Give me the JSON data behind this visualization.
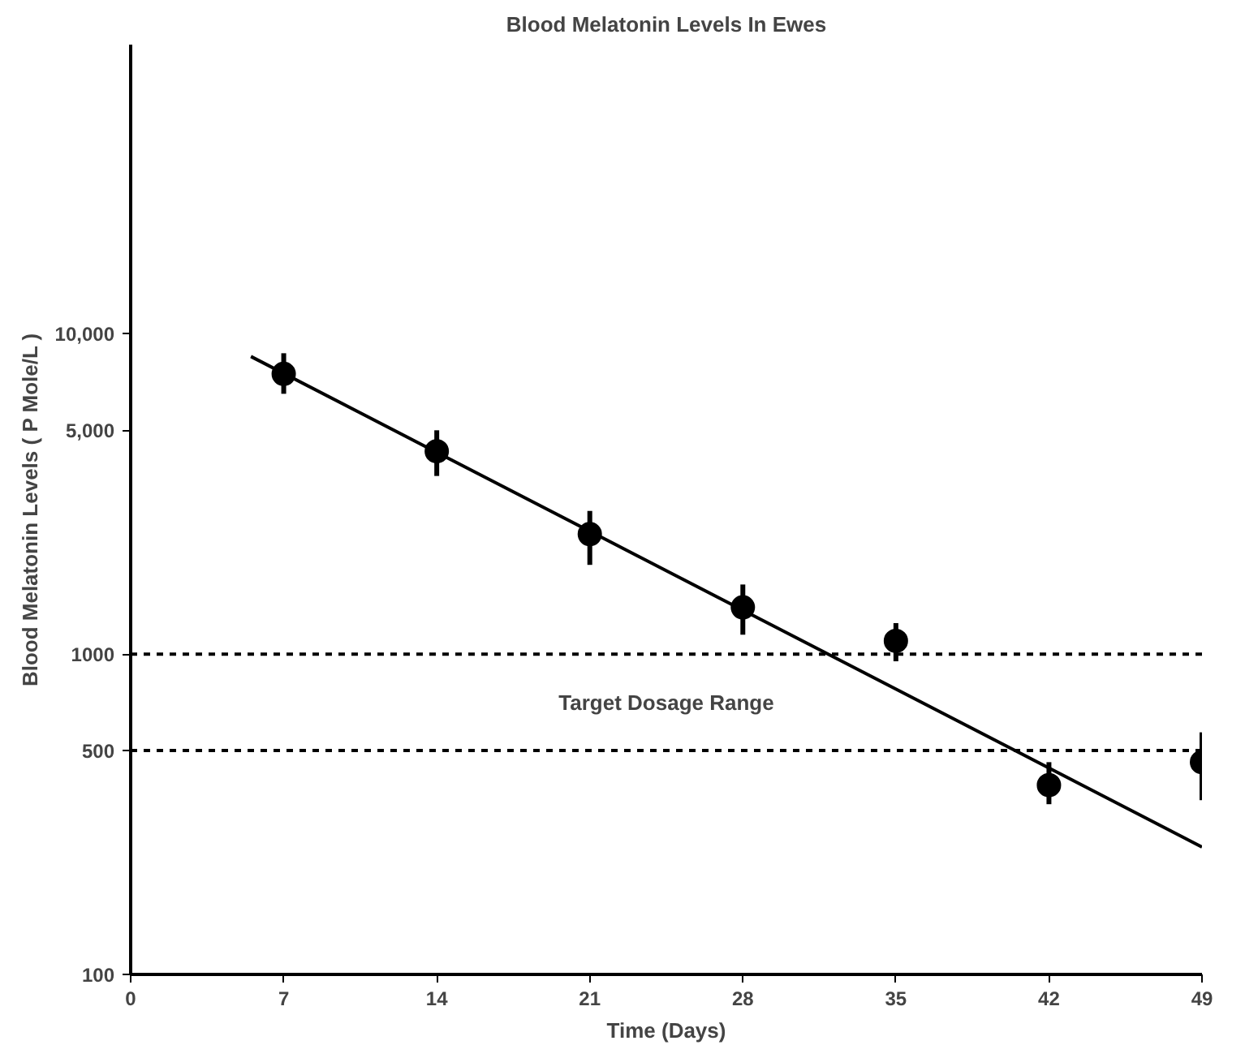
{
  "chart_data": {
    "type": "scatter",
    "title": "Blood Melatonin Levels In Ewes",
    "xlabel": "Time (Days)",
    "ylabel": "Blood Melatonin Levels ( P Mole/L )",
    "log": "y",
    "xlim": [
      0,
      49
    ],
    "xticks": [
      0,
      7,
      14,
      21,
      28,
      35,
      42,
      49
    ],
    "ylim": [
      100,
      80000
    ],
    "yticks": [
      100,
      500,
      1000,
      {
        "value": 5000,
        "label": "5,000"
      },
      {
        "value": 10000,
        "label": "10,000"
      }
    ],
    "grid": false,
    "series": [
      {
        "marker": "circle",
        "color": "#000000",
        "x": [
          7,
          14,
          21,
          28,
          35,
          42,
          49
        ],
        "values": [
          7500,
          4300,
          2370,
          1400,
          1100,
          390,
          460
        ],
        "errors": [
          [
            6500,
            8700
          ],
          [
            3600,
            5000
          ],
          [
            1900,
            2800
          ],
          [
            1150,
            1650
          ],
          [
            950,
            1250
          ],
          [
            340,
            460
          ],
          [
            350,
            570
          ]
        ]
      },
      {
        "type": "line",
        "color": "#000000",
        "x": [
          5.5,
          49
        ],
        "values": [
          8500,
          250
        ],
        "line_style": "solid"
      }
    ],
    "ref_lines": [
      {
        "axis": "y",
        "value": 1000,
        "line_style": "dotted",
        "color": "#000000"
      },
      {
        "axis": "y",
        "value": 500,
        "line_style": "dotted",
        "color": "#000000"
      }
    ],
    "annotations": [
      "Target Dosage Range"
    ]
  }
}
